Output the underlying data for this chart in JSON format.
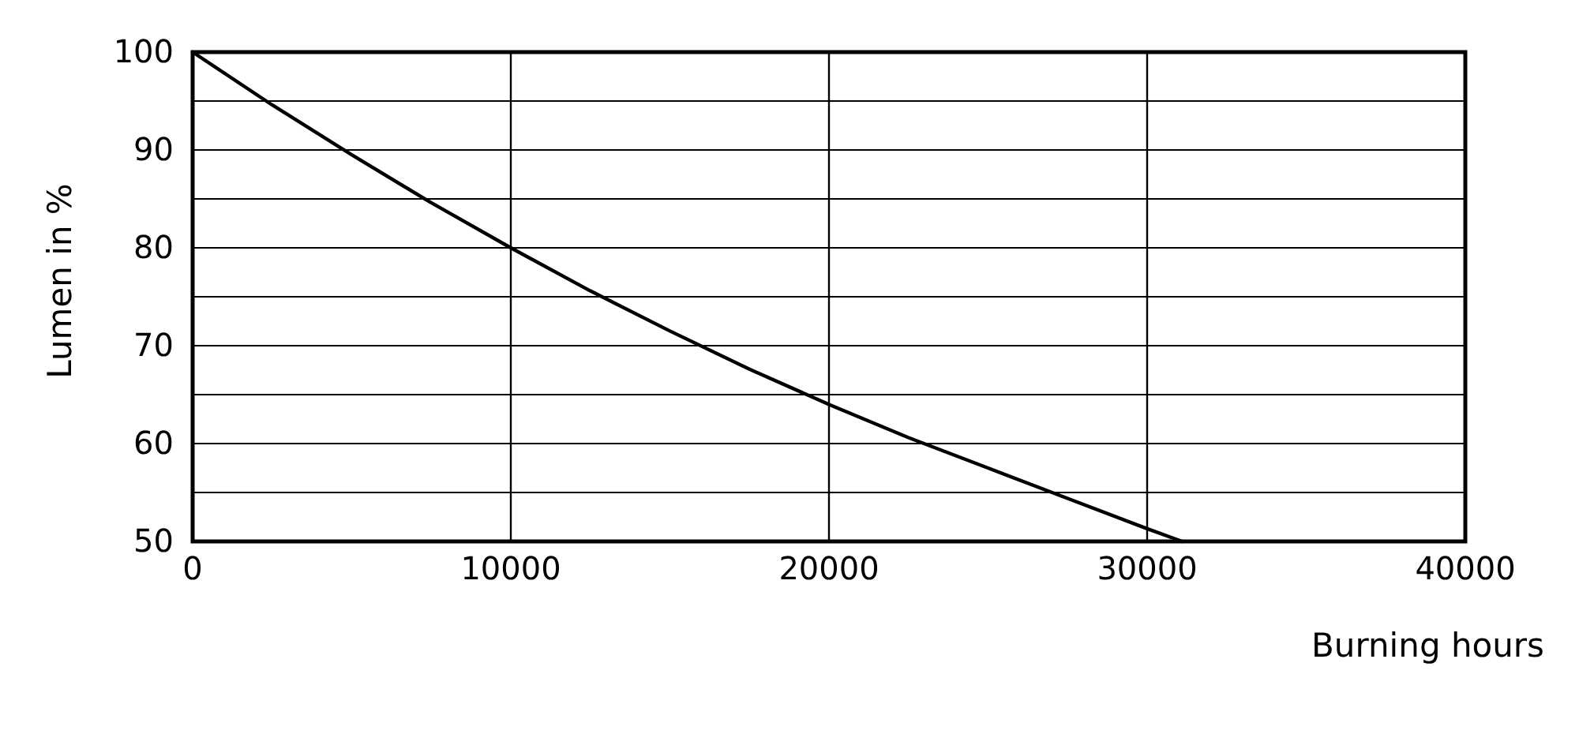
{
  "chart_data": {
    "type": "line",
    "xlabel": "Burning hours",
    "ylabel": "Lumen in %",
    "x": [
      0,
      2500,
      5000,
      7500,
      10000,
      12500,
      15000,
      17500,
      20000,
      22500,
      25000,
      27500,
      30000,
      31100
    ],
    "series": [
      {
        "color": "#000000",
        "values": [
          100,
          94.6,
          89.5,
          84.6,
          80,
          75.6,
          71.5,
          67.6,
          64,
          60.6,
          57.5,
          54.4,
          51.3,
          50
        ]
      }
    ],
    "xlim": [
      0,
      40000
    ],
    "xticks": [
      0,
      10000,
      20000,
      30000,
      40000
    ],
    "ylim": [
      50,
      100
    ],
    "yticks": [
      50,
      {
        "value": 55,
        "label": null
      },
      60,
      {
        "value": 65,
        "label": null
      },
      70,
      {
        "value": 75,
        "label": null
      },
      80,
      {
        "value": 85,
        "label": null
      },
      90,
      {
        "value": 95,
        "label": null
      },
      100
    ],
    "grid": true,
    "marker": "none",
    "line_style": "solid"
  }
}
